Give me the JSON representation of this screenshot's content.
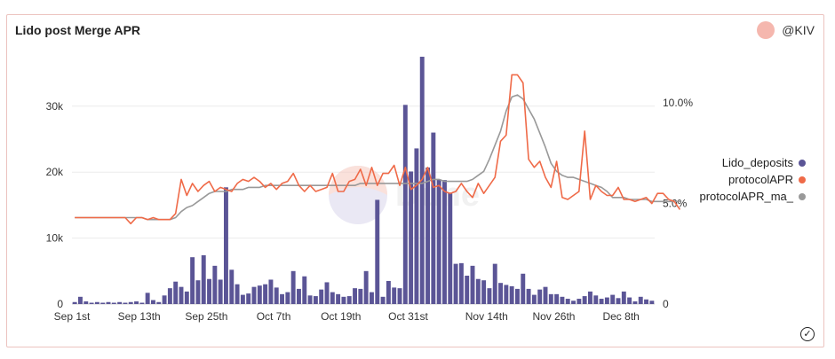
{
  "header": {
    "title": "Lido post Merge APR",
    "author": "@KIV"
  },
  "watermark": "Dune",
  "colors": {
    "deposits": "#5b5596",
    "protocolAPR": "#ef6a48",
    "protocolAPR_ma": "#999999",
    "avatar": "#f5b7ae"
  },
  "icons": {
    "verified": "check-circle-icon"
  },
  "chart_data": {
    "type": "bar+line",
    "title": "Lido post Merge APR",
    "x_labels": [
      "Sep 1st",
      "Sep 13th",
      "Sep 25th",
      "Oct 7th",
      "Oct 19th",
      "Oct 31st",
      "Nov 14th",
      "Nov 26th",
      "Dec 8th"
    ],
    "x_label_index": [
      0,
      12,
      24,
      36,
      48,
      60,
      74,
      86,
      98
    ],
    "y_left": {
      "ticks": [
        "0",
        "10k",
        "20k",
        "30k"
      ],
      "tick_values": [
        0,
        10000,
        20000,
        30000
      ],
      "range": [
        0,
        37500
      ]
    },
    "y_right": {
      "ticks": [
        "0",
        "5.0%",
        "10.0%"
      ],
      "tick_values": [
        0,
        5,
        10
      ],
      "range": [
        0,
        12.3
      ]
    },
    "legend": [
      "Lido_deposits",
      "protocolAPR",
      "protocolAPR_ma_"
    ],
    "legend_position": "right",
    "series": [
      {
        "name": "Lido_deposits",
        "kind": "bar",
        "axis": "left",
        "values": [
          300,
          1100,
          400,
          200,
          300,
          200,
          300,
          200,
          300,
          200,
          300,
          400,
          200,
          1700,
          600,
          300,
          1300,
          2400,
          3400,
          2600,
          1900,
          7100,
          3600,
          7400,
          3800,
          5800,
          3700,
          17700,
          5200,
          3000,
          1400,
          1600,
          2600,
          2800,
          3000,
          3700,
          2500,
          1500,
          1800,
          5000,
          2300,
          4200,
          1300,
          1200,
          2200,
          3300,
          1800,
          1500,
          1100,
          1200,
          2400,
          2300,
          5000,
          1800,
          15800,
          1100,
          3500,
          2500,
          2400,
          30200,
          20100,
          23600,
          37500,
          20700,
          26000,
          18900,
          18800,
          16900,
          6100,
          6200,
          4300,
          5800,
          3800,
          3600,
          2400,
          6100,
          3200,
          2900,
          2700,
          2300,
          4600,
          2300,
          1400,
          2200,
          2600,
          1500,
          1500,
          1100,
          800,
          500,
          800,
          1200,
          1900,
          1300,
          800,
          1000,
          1400,
          900,
          1900,
          1000,
          400,
          1100,
          700,
          500
        ]
      },
      {
        "name": "protocolAPR",
        "kind": "line",
        "axis": "right",
        "values": [
          4.3,
          4.3,
          4.3,
          4.3,
          4.3,
          4.3,
          4.3,
          4.3,
          4.3,
          4.3,
          4.0,
          4.3,
          4.3,
          4.2,
          4.3,
          4.2,
          4.2,
          4.2,
          4.5,
          6.2,
          5.4,
          6.0,
          5.6,
          5.9,
          6.1,
          5.6,
          5.8,
          5.7,
          5.6,
          6.0,
          6.2,
          6.1,
          6.3,
          6.1,
          5.8,
          6.0,
          5.7,
          6.0,
          6.1,
          6.5,
          5.9,
          5.6,
          5.9,
          5.6,
          5.7,
          5.8,
          6.5,
          5.6,
          5.6,
          6.1,
          6.2,
          6.7,
          5.9,
          6.8,
          5.9,
          6.5,
          6.5,
          6.9,
          5.9,
          6.8,
          5.7,
          5.9,
          6.2,
          6.8,
          5.8,
          5.9,
          5.6,
          5.5,
          5.6,
          6.0,
          5.6,
          5.3,
          6.0,
          5.5,
          5.9,
          6.3,
          8.1,
          8.4,
          11.4,
          11.4,
          11.0,
          7.2,
          6.8,
          7.1,
          6.3,
          5.8,
          7.1,
          5.3,
          5.2,
          5.4,
          5.6,
          8.6,
          5.2,
          5.9,
          5.6,
          5.4,
          5.4,
          5.8,
          5.2,
          5.2,
          5.1,
          5.2,
          5.3,
          5.0,
          5.5,
          5.5,
          5.2,
          5.1,
          4.7
        ]
      },
      {
        "name": "protocolAPR_ma_",
        "kind": "line",
        "axis": "right",
        "values": [
          4.3,
          4.3,
          4.3,
          4.3,
          4.3,
          4.3,
          4.3,
          4.3,
          4.3,
          4.3,
          4.3,
          4.3,
          4.3,
          4.2,
          4.2,
          4.2,
          4.2,
          4.2,
          4.3,
          4.6,
          4.8,
          4.9,
          5.1,
          5.3,
          5.5,
          5.6,
          5.6,
          5.6,
          5.7,
          5.7,
          5.7,
          5.8,
          5.8,
          5.8,
          5.9,
          5.9,
          5.9,
          5.9,
          5.9,
          5.9,
          5.9,
          5.9,
          5.9,
          5.9,
          5.9,
          5.9,
          5.9,
          5.9,
          5.9,
          5.9,
          5.9,
          6.0,
          6.0,
          6.0,
          6.0,
          6.0,
          6.0,
          6.0,
          6.0,
          6.0,
          6.0,
          6.0,
          6.0,
          6.1,
          6.2,
          6.2,
          6.1,
          6.1,
          6.1,
          6.1,
          6.1,
          6.2,
          6.4,
          6.6,
          7.2,
          7.9,
          8.6,
          9.6,
          10.3,
          10.4,
          10.2,
          9.7,
          9.2,
          8.5,
          7.8,
          7.0,
          6.6,
          6.4,
          6.3,
          6.3,
          6.2,
          6.1,
          6.0,
          5.9,
          5.8,
          5.6,
          5.3,
          5.3,
          5.3,
          5.2,
          5.2,
          5.2,
          5.2,
          5.1,
          5.1,
          5.1,
          5.1,
          5.1,
          5.1
        ]
      }
    ]
  }
}
